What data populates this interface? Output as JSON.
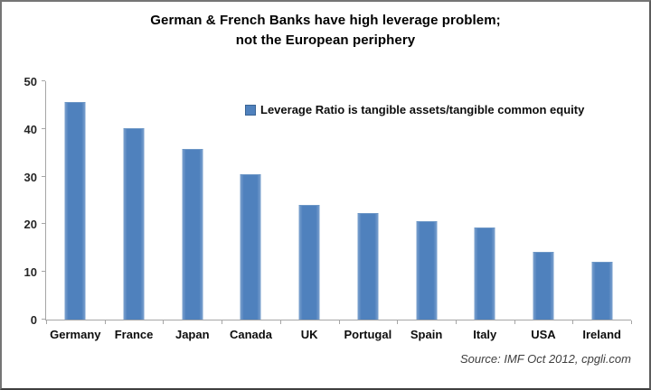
{
  "title": {
    "line1": "German & French Banks have high leverage problem;",
    "line2": "not the European periphery"
  },
  "legend": {
    "label": "Leverage Ratio is tangible assets/tangible common equity"
  },
  "source": "Source: IMF Oct 2012, cpgli.com",
  "colors": {
    "bar": "#4F81BD",
    "axis": "#A6A6A6",
    "text": "#000000",
    "source_text": "#3F3F3F",
    "frame_border": "#5C5C5C"
  },
  "chart_data": {
    "type": "bar",
    "title": "German & French Banks have high leverage problem; not the European periphery",
    "categories": [
      "Germany",
      "France",
      "Japan",
      "Canada",
      "UK",
      "Portugal",
      "Spain",
      "Italy",
      "USA",
      "Ireland"
    ],
    "values": [
      45.5,
      40,
      35.7,
      30.3,
      23.8,
      22.2,
      20.4,
      19.2,
      14.1,
      12
    ],
    "series_name": "Leverage Ratio is tangible assets/tangible common equity",
    "xlabel": "",
    "ylabel": "",
    "ylim": [
      0,
      50
    ],
    "yticks": [
      0,
      10,
      20,
      30,
      40,
      50
    ],
    "grid": false,
    "legend_position": "inside-top-center",
    "bar_color": "#4F81BD",
    "source": "Source: IMF Oct 2012, cpgli.com"
  }
}
